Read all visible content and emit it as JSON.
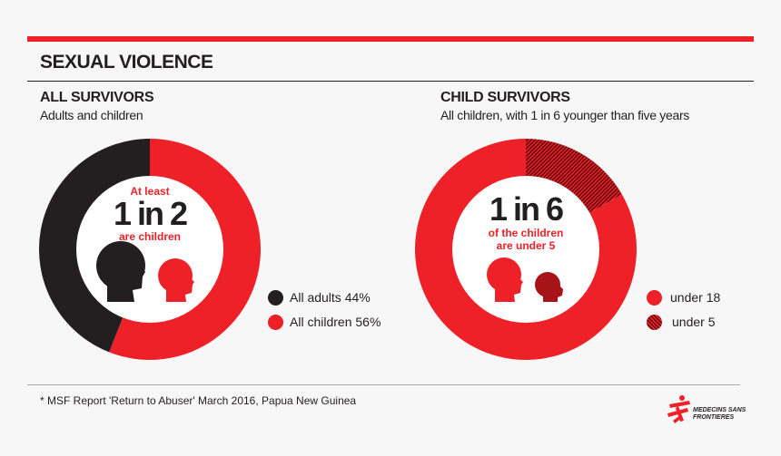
{
  "header": {
    "title": "SEXUAL VIOLENCE"
  },
  "left": {
    "heading": "ALL SURVIVORS",
    "subheading": "Adults and children",
    "center_top": "At least",
    "center_big": "1 in 2",
    "center_bottom": "are children"
  },
  "right": {
    "heading": "CHILD SURVIVORS",
    "subheading": "All children, with 1 in 6 younger than five years",
    "center_big": "1 in 6",
    "center_line1": "of the children",
    "center_line2": "are under 5"
  },
  "footer": {
    "note": "* MSF Report 'Return to Abuser' March 2016, Papua New Guinea",
    "logo_text": "MEDECINS SANS FRONTIERES"
  },
  "colors": {
    "red": "#ee2128",
    "black": "#231f20",
    "dark_red": "#a6141a"
  },
  "chart_data": [
    {
      "type": "pie",
      "title": "ALL SURVIVORS",
      "categories": [
        "All adults",
        "All children"
      ],
      "values": [
        44,
        56
      ],
      "legend": [
        "All adults 44%",
        "All children 56%"
      ],
      "legend_position": "right"
    },
    {
      "type": "pie",
      "title": "CHILD SURVIVORS",
      "categories": [
        "under 18",
        "under 5"
      ],
      "values": [
        83.3,
        16.7
      ],
      "legend": [
        "under 18",
        "under 5"
      ],
      "legend_position": "right"
    }
  ]
}
